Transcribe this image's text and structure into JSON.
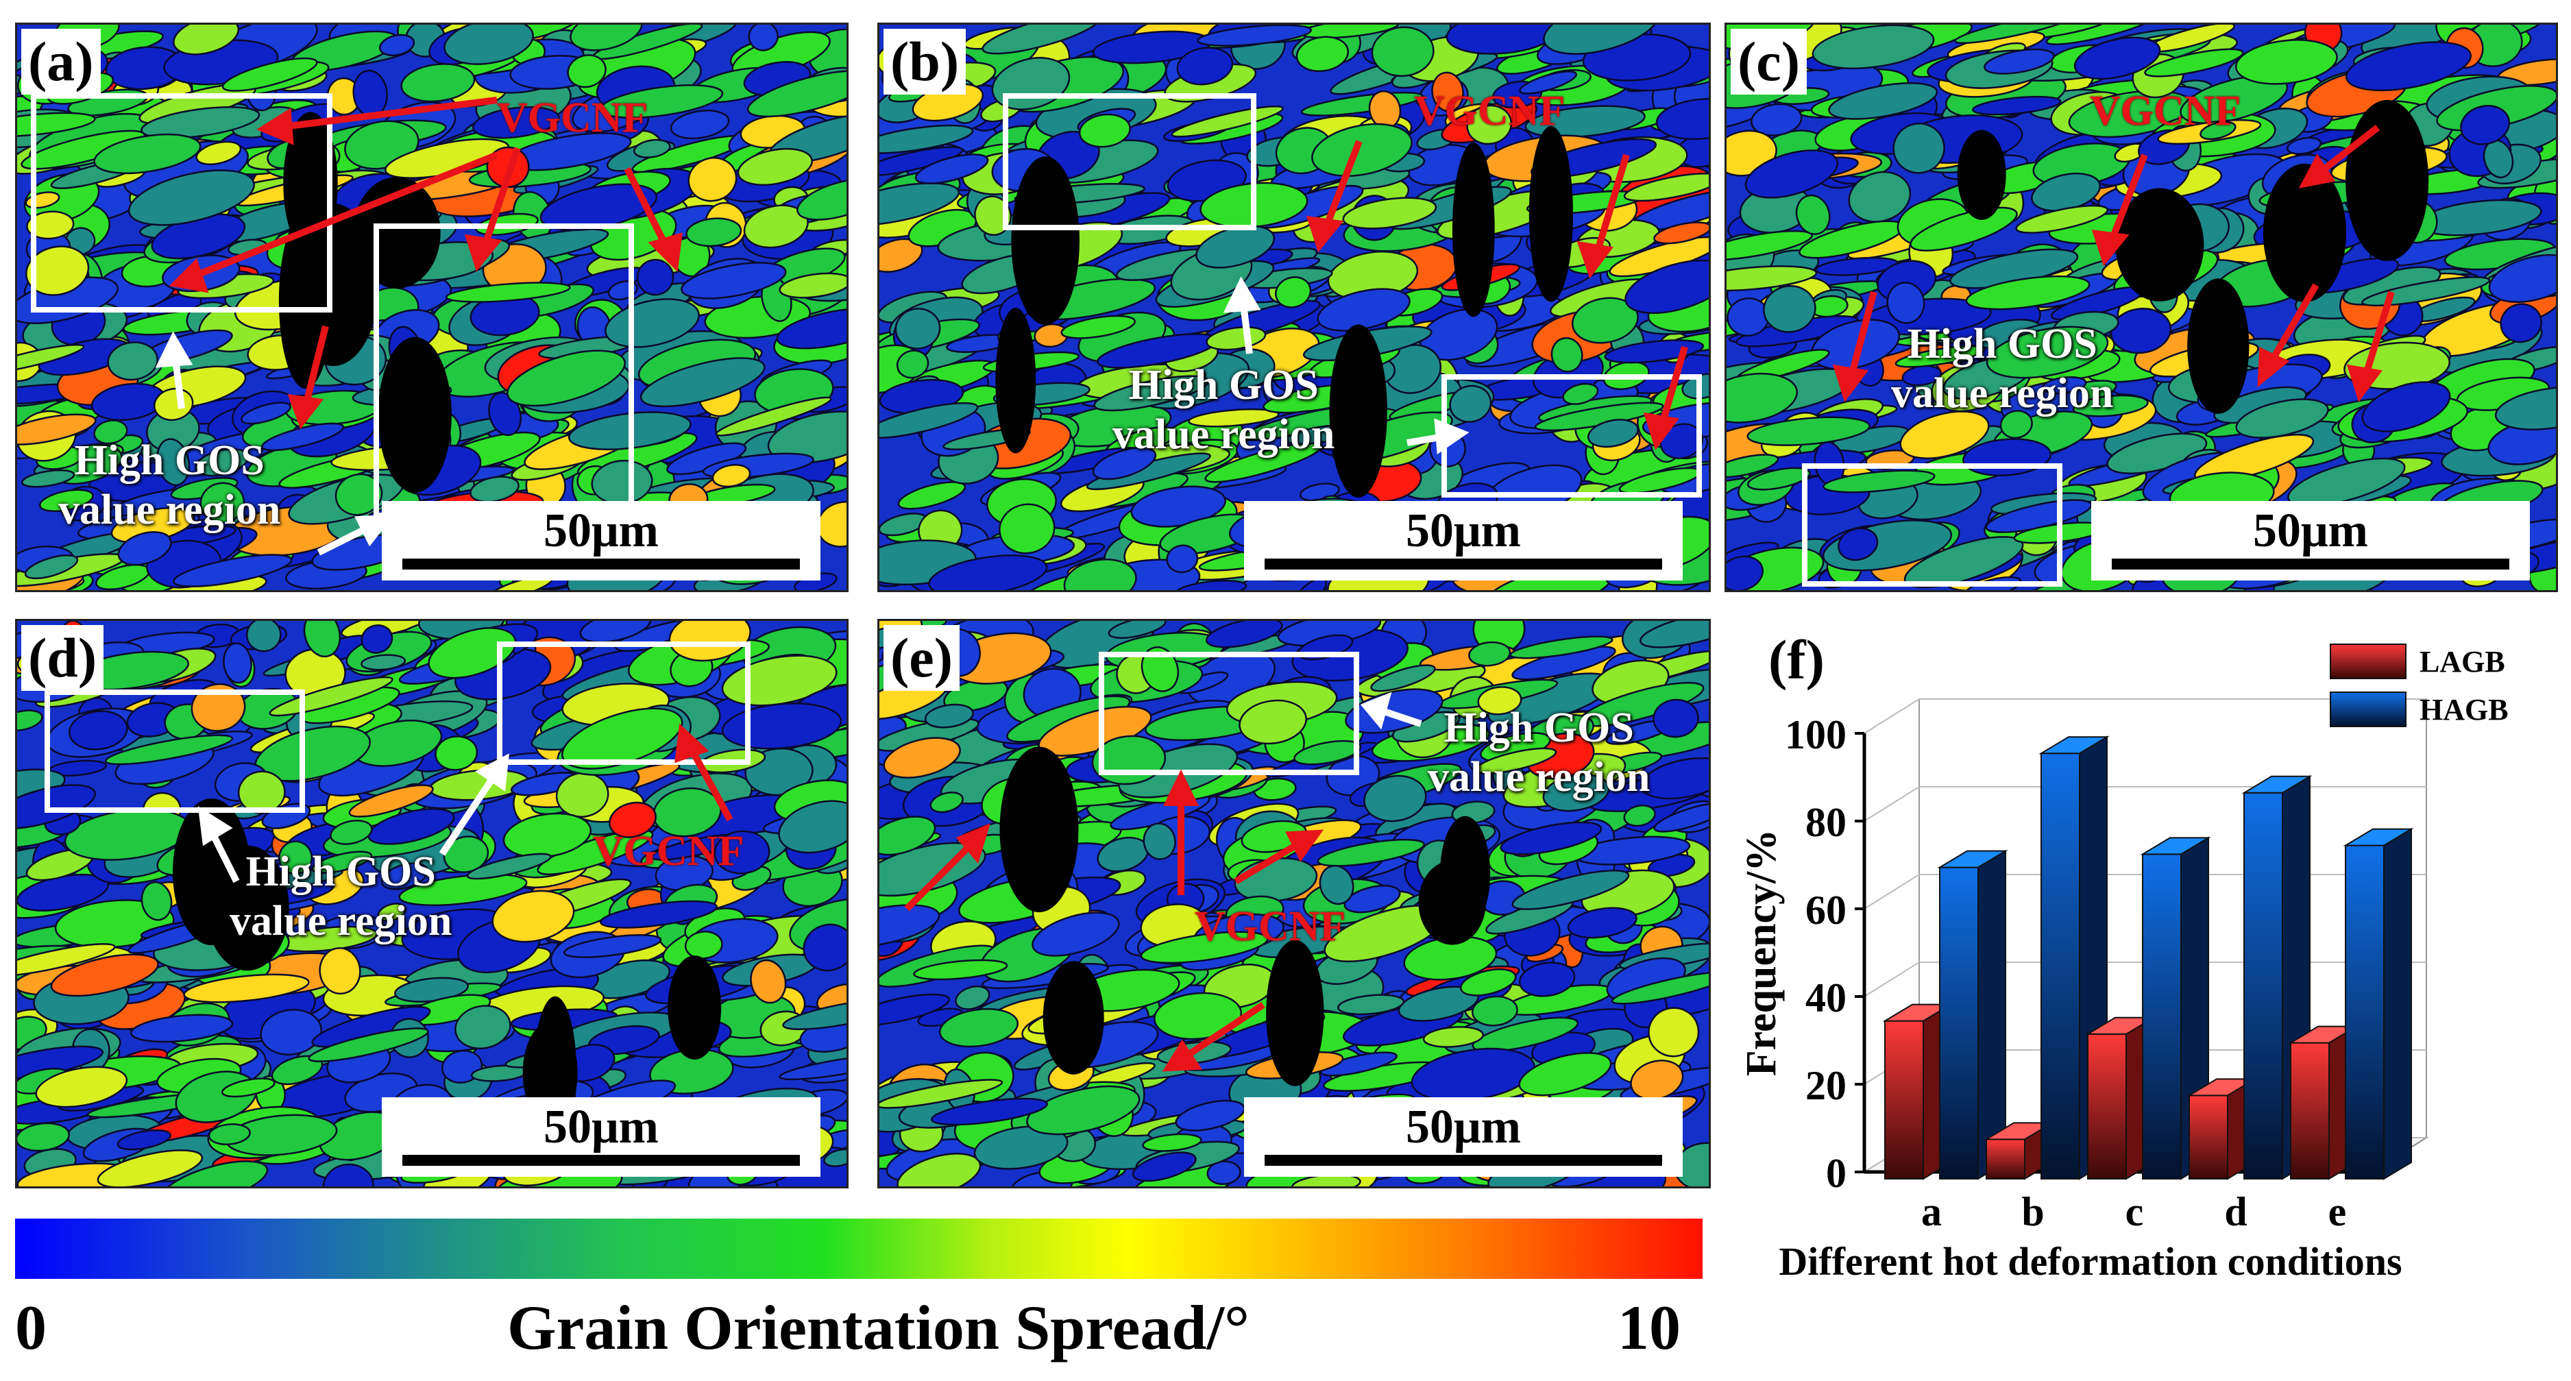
{
  "panels": [
    {
      "label": "(a)",
      "scale": "50μm",
      "annotations": [
        "VGCNF",
        "High GOS",
        "value region"
      ]
    },
    {
      "label": "(b)",
      "scale": "50μm",
      "annotations": [
        "VGCNF",
        "High GOS",
        "value region"
      ]
    },
    {
      "label": "(c)",
      "scale": "50μm",
      "annotations": [
        "VGCNF",
        "High GOS",
        "value region"
      ]
    },
    {
      "label": "(d)",
      "scale": "50μm",
      "annotations": [
        "VGCNF",
        "High GOS",
        "value region"
      ]
    },
    {
      "label": "(e)",
      "scale": "50μm",
      "annotations": [
        "VGCNF",
        "High GOS",
        "value region"
      ]
    }
  ],
  "colorbar": {
    "title": "Grain Orientation Spread/°",
    "min": "0",
    "max": "10",
    "colors": [
      "#0000ff",
      "#22c450",
      "#22e020",
      "#ffff00",
      "#ff7c00",
      "#ff1000"
    ]
  },
  "chart_data": {
    "type": "bar",
    "panel_label": "(f)",
    "categories": [
      "a",
      "b",
      "c",
      "d",
      "e"
    ],
    "series": [
      {
        "name": "LAGB",
        "values": [
          36,
          9,
          33,
          19,
          31
        ],
        "color": "#e8242a"
      },
      {
        "name": "HAGB",
        "values": [
          71,
          97,
          74,
          88,
          76
        ],
        "color": "#0b63d8"
      }
    ],
    "xlabel": "Different hot deformation conditions",
    "ylabel": "Frequency/%",
    "ylim": [
      0,
      100
    ],
    "yticks": [
      "0",
      "20",
      "40",
      "60",
      "80",
      "100"
    ],
    "legend": "top-right",
    "style": "3d"
  }
}
